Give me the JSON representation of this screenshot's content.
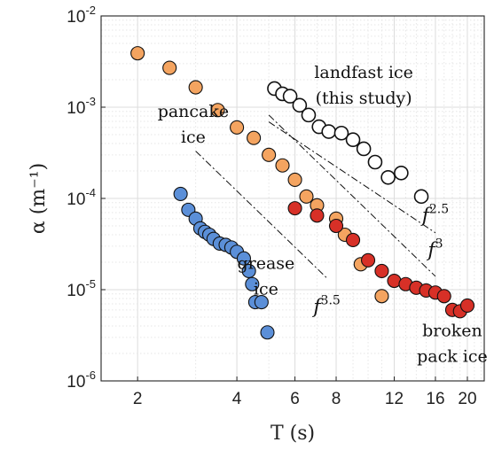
{
  "chart_data": {
    "type": "scatter",
    "xlabel": "T (s)",
    "ylabel": "α (m⁻¹)",
    "xscale": "log",
    "yscale": "log",
    "xlim": [
      1.55,
      22.5
    ],
    "ylim": [
      1e-06,
      0.01
    ],
    "grid": true,
    "xticks": [
      {
        "value": 2,
        "label": "2"
      },
      {
        "value": 4,
        "label": "4"
      },
      {
        "value": 6,
        "label": "6"
      },
      {
        "value": 8,
        "label": "8"
      },
      {
        "value": 12,
        "label": "12"
      },
      {
        "value": 16,
        "label": "16"
      },
      {
        "value": 20,
        "label": "20"
      }
    ],
    "yticks": [
      {
        "value": 1e-06,
        "base": "10",
        "exp": "-6"
      },
      {
        "value": 1e-05,
        "base": "10",
        "exp": "-5"
      },
      {
        "value": 0.0001,
        "base": "10",
        "exp": "-4"
      },
      {
        "value": 0.001,
        "base": "10",
        "exp": "-3"
      },
      {
        "value": 0.01,
        "base": "10",
        "exp": "-2"
      }
    ],
    "series": [
      {
        "color": "#f4a460",
        "filled": true,
        "points": [
          [
            2.0,
            0.0039
          ],
          [
            2.5,
            0.0027
          ],
          [
            3.0,
            0.00165
          ],
          [
            3.5,
            0.00093
          ],
          [
            4.0,
            0.0006
          ],
          [
            4.5,
            0.00046
          ],
          [
            5.0,
            0.0003
          ],
          [
            5.5,
            0.00023
          ],
          [
            6.0,
            0.00016
          ],
          [
            6.5,
            0.000105
          ],
          [
            7.0,
            8.4e-05
          ],
          [
            8.0,
            6e-05
          ],
          [
            8.5,
            4e-05
          ],
          [
            9.5,
            1.9e-05
          ],
          [
            11.0,
            8.5e-06
          ]
        ]
      },
      {
        "color": "#d73027",
        "filled": true,
        "points": [
          [
            6.0,
            7.8e-05
          ],
          [
            7.0,
            6.5e-05
          ],
          [
            8.0,
            5e-05
          ],
          [
            9.0,
            3.5e-05
          ],
          [
            10.0,
            2.1e-05
          ],
          [
            11.0,
            1.6e-05
          ],
          [
            12.0,
            1.25e-05
          ],
          [
            13.0,
            1.15e-05
          ],
          [
            14.0,
            1.05e-05
          ],
          [
            15.0,
            9.8e-06
          ],
          [
            16.0,
            9.3e-06
          ],
          [
            17.0,
            8.5e-06
          ],
          [
            18.0,
            6e-06
          ],
          [
            19.0,
            5.8e-06
          ],
          [
            20.0,
            6.7e-06
          ]
        ]
      },
      {
        "color": "#5b8fd8",
        "filled": true,
        "points": [
          [
            2.7,
            0.000112
          ],
          [
            2.85,
            7.5e-05
          ],
          [
            3.0,
            6e-05
          ],
          [
            3.1,
            4.7e-05
          ],
          [
            3.2,
            4.3e-05
          ],
          [
            3.3,
            4e-05
          ],
          [
            3.4,
            3.6e-05
          ],
          [
            3.55,
            3.2e-05
          ],
          [
            3.7,
            3.1e-05
          ],
          [
            3.85,
            2.9e-05
          ],
          [
            4.0,
            2.6e-05
          ],
          [
            4.2,
            2.2e-05
          ],
          [
            4.35,
            1.6e-05
          ],
          [
            4.45,
            1.15e-05
          ],
          [
            4.55,
            7.3e-06
          ],
          [
            4.75,
            7.3e-06
          ],
          [
            4.95,
            3.4e-06
          ]
        ]
      },
      {
        "color": "#ffffff",
        "filled": false,
        "points": [
          [
            5.2,
            0.0016
          ],
          [
            5.5,
            0.0014
          ],
          [
            5.8,
            0.00132
          ],
          [
            6.2,
            0.00105
          ],
          [
            6.6,
            0.00082
          ],
          [
            7.1,
            0.00061
          ],
          [
            7.6,
            0.00054
          ],
          [
            8.3,
            0.00052
          ],
          [
            9.0,
            0.00044
          ],
          [
            9.7,
            0.00035
          ],
          [
            10.5,
            0.00025
          ],
          [
            11.5,
            0.00017
          ],
          [
            12.6,
            0.00019
          ],
          [
            14.5,
            0.000105
          ]
        ]
      }
    ],
    "reference_lines": [
      {
        "style": "dash-dot",
        "x": [
          3.0,
          7.5
        ],
        "y": [
          0.00033,
          1.34e-05
        ]
      },
      {
        "style": "dash-dot",
        "x": [
          5.0,
          16.0
        ],
        "y": [
          0.00082,
          1.4e-05
        ]
      },
      {
        "style": "dash-dot",
        "x": [
          5.0,
          16.0
        ],
        "y": [
          0.00069,
          4.2e-05
        ]
      }
    ],
    "annotations": [
      {
        "lines": [
          "landfast ice",
          "(this study)"
        ],
        "x": 9.7,
        "y": 0.0021
      },
      {
        "lines": [
          "pancake",
          "ice"
        ],
        "x": 2.95,
        "y": 0.00078
      },
      {
        "lines": [
          "grease",
          "ice"
        ],
        "x": 4.9,
        "y": 1.7e-05
      },
      {
        "lines": [
          "broken",
          "pack ice"
        ],
        "x": 18.0,
        "y": 3.1e-06
      }
    ],
    "power_labels": [
      {
        "base": "f",
        "exp": "2.5",
        "x": 16.0,
        "y": 5.5e-05
      },
      {
        "base": "f",
        "exp": "3",
        "x": 16.0,
        "y": 2.3e-05
      },
      {
        "base": "f",
        "exp": "3.5",
        "x": 7.5,
        "y": 5.5e-06
      }
    ]
  }
}
